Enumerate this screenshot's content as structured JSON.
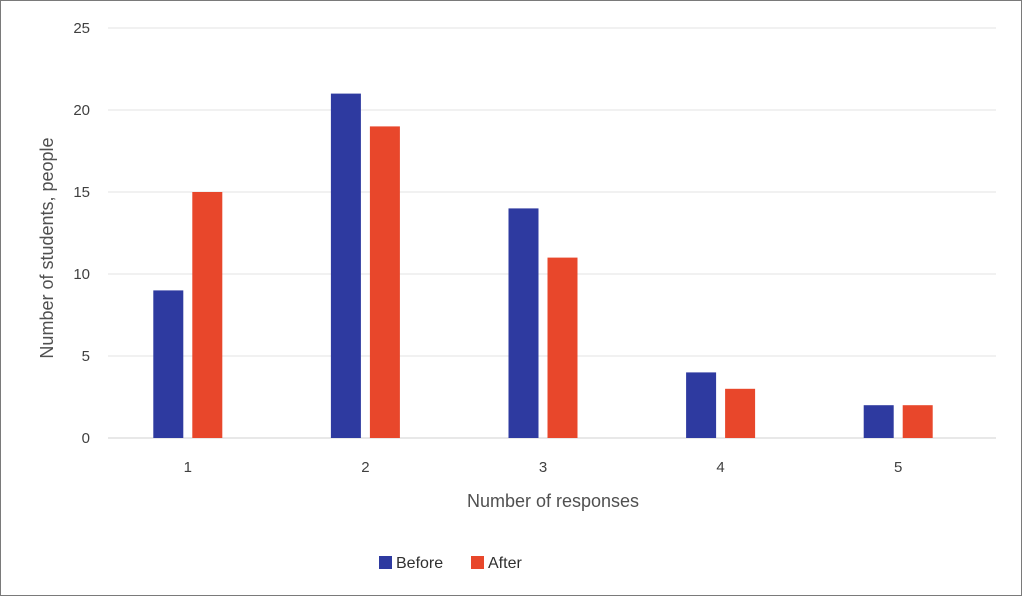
{
  "chart_data": {
    "type": "bar",
    "categories": [
      "1",
      "2",
      "3",
      "4",
      "5"
    ],
    "series": [
      {
        "name": "Before",
        "values": [
          9,
          21,
          14,
          4,
          2
        ],
        "color": "#2e3aa0"
      },
      {
        "name": "After",
        "values": [
          15,
          19,
          11,
          3,
          2
        ],
        "color": "#e8472b"
      }
    ],
    "xlabel": "Number of responses",
    "ylabel": "Number of students, people",
    "ylim": [
      0,
      25
    ],
    "yticks": [
      0,
      5,
      10,
      15,
      20,
      25
    ],
    "grid": true,
    "legend_position": "bottom-center"
  }
}
